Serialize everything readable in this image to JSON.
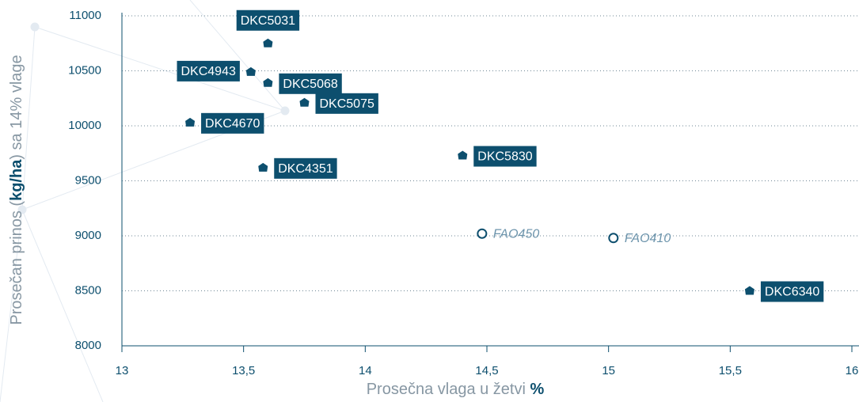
{
  "chart_data": {
    "type": "scatter",
    "xlabel": [
      "Prosečna vlaga u žetvi ",
      "%"
    ],
    "ylabel": [
      "Prosečan prinos (",
      "kg/ha",
      ") sa 14% vlage"
    ],
    "xlim": [
      13,
      16
    ],
    "xticks": [
      13,
      {
        "value": 13.5,
        "label": "13,5"
      },
      14,
      {
        "value": 14.5,
        "label": "14,5"
      },
      15,
      {
        "value": 15.5,
        "label": "15,5"
      },
      16
    ],
    "ylim": [
      8000,
      11000
    ],
    "yticks": [
      8000,
      8500,
      9000,
      9500,
      10000,
      10500,
      11000
    ],
    "grid": true,
    "series": [
      {
        "color": "#0d4f6e",
        "hollow": false,
        "labels": [
          "DKC5031",
          "DKC4943",
          "DKC5068",
          "DKC5075",
          "DKC4670",
          "DKC4351",
          "DKC5830",
          "DKC6340"
        ],
        "x": [
          13.6,
          13.53,
          13.6,
          13.75,
          13.28,
          13.58,
          14.4,
          15.58
        ],
        "values": [
          10750,
          10490,
          10390,
          10210,
          10030,
          9620,
          9730,
          8500
        ]
      },
      {
        "color": "#0d4f6e",
        "hollow": true,
        "labels": [
          "FAO450",
          "FAO410"
        ],
        "x": [
          14.48,
          15.02
        ],
        "values": [
          9020,
          8980
        ]
      }
    ]
  }
}
